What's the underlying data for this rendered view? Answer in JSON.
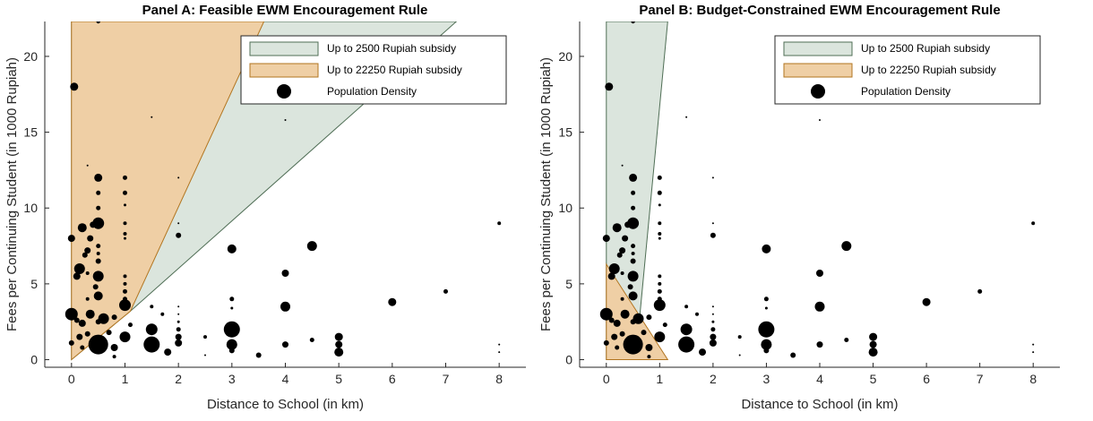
{
  "colors": {
    "green_fill": "#dbe5dd",
    "green_edge": "#4f6e55",
    "orange_fill": "#efcfa5",
    "orange_edge": "#b27520",
    "dots": "#000000",
    "axis": "#262626"
  },
  "chart_data": [
    {
      "type": "scatter",
      "title": "Panel A: Feasible EWM Encouragement Rule",
      "xlabel": "Distance to School (in km)",
      "ylabel": "Fees per Continuing Student (in 1000 Rupiah)",
      "xlim": [
        -0.5,
        8.5
      ],
      "ylim": [
        -0.5,
        22.3
      ],
      "xticks": [
        "0",
        "1",
        "2",
        "3",
        "4",
        "5",
        "6",
        "7",
        "8"
      ],
      "yticks": [
        "0",
        "5",
        "10",
        "15",
        "20"
      ],
      "legend_position": "top-right",
      "legend": [
        {
          "label": "Up to 2500 Rupiah subsidy",
          "kind": "patch",
          "color": "green"
        },
        {
          "label": "Up to 22250 Rupiah subsidy",
          "kind": "patch",
          "color": "orange"
        },
        {
          "label": "Population Density",
          "kind": "marker"
        }
      ],
      "regions": [
        {
          "name": "Up to 2500 Rupiah subsidy",
          "color": "green",
          "polygon": [
            [
              0,
              0
            ],
            [
              0,
              22.3
            ],
            [
              7.2,
              22.3
            ],
            [
              1.1,
              3.2
            ]
          ]
        },
        {
          "name": "Up to 22250 Rupiah subsidy",
          "color": "orange",
          "polygon": [
            [
              0,
              0
            ],
            [
              0,
              22.3
            ],
            [
              3.6,
              22.3
            ],
            [
              1.1,
              3.2
            ]
          ]
        }
      ]
    },
    {
      "type": "scatter",
      "title": "Panel B: Budget-Constrained EWM Encouragement Rule",
      "xlabel": "Distance to School (in km)",
      "ylabel": "Fees per Continuing Student (in 1000 Rupiah)",
      "xlim": [
        -0.5,
        8.5
      ],
      "ylim": [
        -0.5,
        22.3
      ],
      "xticks": [
        "0",
        "1",
        "2",
        "3",
        "4",
        "5",
        "6",
        "7",
        "8"
      ],
      "yticks": [
        "0",
        "5",
        "10",
        "15",
        "20"
      ],
      "legend_position": "top-right",
      "legend": [
        {
          "label": "Up to 2500 Rupiah subsidy",
          "kind": "patch",
          "color": "green"
        },
        {
          "label": "Up to 22250 Rupiah subsidy",
          "kind": "patch",
          "color": "orange"
        },
        {
          "label": "Population Density",
          "kind": "marker"
        }
      ],
      "regions": [
        {
          "name": "Up to 2500 Rupiah subsidy",
          "color": "green",
          "polygon": [
            [
              0,
              0
            ],
            [
              0,
              22.3
            ],
            [
              1.15,
              22.3
            ],
            [
              0.55,
              0
            ]
          ]
        },
        {
          "name": "Up to 22250 Rupiah subsidy",
          "color": "orange",
          "polygon": [
            [
              0,
              0
            ],
            [
              0,
              6.3
            ],
            [
              1.15,
              0
            ]
          ]
        }
      ]
    }
  ],
  "points": [
    {
      "x": 0.5,
      "y": 22.3,
      "r": 2.2
    },
    {
      "x": 0.05,
      "y": 18.0,
      "r": 4.5
    },
    {
      "x": 1.5,
      "y": 16.0,
      "r": 1
    },
    {
      "x": 4.0,
      "y": 15.8,
      "r": 1
    },
    {
      "x": 0.5,
      "y": 12.0,
      "r": 4.5
    },
    {
      "x": 1.0,
      "y": 12.0,
      "r": 2.5
    },
    {
      "x": 2.0,
      "y": 12.0,
      "r": 1
    },
    {
      "x": 0.3,
      "y": 12.8,
      "r": 1
    },
    {
      "x": 0.5,
      "y": 11.0,
      "r": 2.5
    },
    {
      "x": 1.0,
      "y": 11.0,
      "r": 2.5
    },
    {
      "x": 1.0,
      "y": 10.2,
      "r": 1.5
    },
    {
      "x": 0.5,
      "y": 10.0,
      "r": 2.5
    },
    {
      "x": 0.5,
      "y": 9.0,
      "r": 6.5
    },
    {
      "x": 1.0,
      "y": 9.0,
      "r": 2
    },
    {
      "x": 0.2,
      "y": 8.7,
      "r": 5
    },
    {
      "x": 0.4,
      "y": 8.9,
      "r": 3.5
    },
    {
      "x": 2.0,
      "y": 9.0,
      "r": 1
    },
    {
      "x": 8.0,
      "y": 9.0,
      "r": 2
    },
    {
      "x": 0.0,
      "y": 8.0,
      "r": 4
    },
    {
      "x": 0.35,
      "y": 8.0,
      "r": 3.5
    },
    {
      "x": 1.0,
      "y": 8.3,
      "r": 2
    },
    {
      "x": 1.0,
      "y": 8.0,
      "r": 1.5
    },
    {
      "x": 2.0,
      "y": 8.2,
      "r": 3
    },
    {
      "x": 0.3,
      "y": 7.2,
      "r": 3.5
    },
    {
      "x": 0.5,
      "y": 7.5,
      "r": 2.5
    },
    {
      "x": 0.25,
      "y": 6.9,
      "r": 3
    },
    {
      "x": 0.5,
      "y": 7.0,
      "r": 2
    },
    {
      "x": 3.0,
      "y": 7.3,
      "r": 5
    },
    {
      "x": 4.5,
      "y": 7.5,
      "r": 5.5
    },
    {
      "x": 0.15,
      "y": 6.0,
      "r": 6
    },
    {
      "x": 0.5,
      "y": 6.5,
      "r": 3
    },
    {
      "x": 0.1,
      "y": 5.5,
      "r": 4
    },
    {
      "x": 0.3,
      "y": 5.7,
      "r": 2
    },
    {
      "x": 0.5,
      "y": 5.5,
      "r": 6
    },
    {
      "x": 1.0,
      "y": 5.5,
      "r": 2
    },
    {
      "x": 4.0,
      "y": 5.7,
      "r": 4
    },
    {
      "x": 0.45,
      "y": 4.8,
      "r": 3
    },
    {
      "x": 1.0,
      "y": 5.0,
      "r": 2
    },
    {
      "x": 0.5,
      "y": 4.2,
      "r": 5
    },
    {
      "x": 1.0,
      "y": 4.5,
      "r": 2.5
    },
    {
      "x": 0.3,
      "y": 4.0,
      "r": 2
    },
    {
      "x": 1.0,
      "y": 4.0,
      "r": 2.5
    },
    {
      "x": 3.0,
      "y": 4.0,
      "r": 2.5
    },
    {
      "x": 7.0,
      "y": 4.5,
      "r": 2.5
    },
    {
      "x": 1.0,
      "y": 3.6,
      "r": 6.5
    },
    {
      "x": 6.0,
      "y": 3.8,
      "r": 4.5
    },
    {
      "x": 4.0,
      "y": 3.5,
      "r": 5.5
    },
    {
      "x": 1.5,
      "y": 3.5,
      "r": 2
    },
    {
      "x": 2.0,
      "y": 3.5,
      "r": 1
    },
    {
      "x": 3.0,
      "y": 3.4,
      "r": 1.5
    },
    {
      "x": 0.0,
      "y": 3.0,
      "r": 7
    },
    {
      "x": 0.35,
      "y": 3.0,
      "r": 5
    },
    {
      "x": 0.6,
      "y": 2.7,
      "r": 6
    },
    {
      "x": 0.8,
      "y": 2.8,
      "r": 3
    },
    {
      "x": 1.7,
      "y": 3.0,
      "r": 2
    },
    {
      "x": 2.0,
      "y": 3.0,
      "r": 1
    },
    {
      "x": 0.2,
      "y": 2.4,
      "r": 4
    },
    {
      "x": 0.1,
      "y": 2.6,
      "r": 3
    },
    {
      "x": 0.5,
      "y": 2.5,
      "r": 3
    },
    {
      "x": 1.1,
      "y": 2.3,
      "r": 2.5
    },
    {
      "x": 2.0,
      "y": 2.5,
      "r": 1.5
    },
    {
      "x": 2.0,
      "y": 2.0,
      "r": 2.5
    },
    {
      "x": 1.5,
      "y": 2.0,
      "r": 6.5
    },
    {
      "x": 3.0,
      "y": 2.0,
      "r": 9
    },
    {
      "x": 0.3,
      "y": 1.7,
      "r": 3
    },
    {
      "x": 0.7,
      "y": 1.8,
      "r": 3
    },
    {
      "x": 0.15,
      "y": 1.5,
      "r": 3.5
    },
    {
      "x": 1.0,
      "y": 1.5,
      "r": 6
    },
    {
      "x": 2.0,
      "y": 1.5,
      "r": 3.5
    },
    {
      "x": 2.5,
      "y": 1.5,
      "r": 2
    },
    {
      "x": 5.0,
      "y": 1.5,
      "r": 4.5
    },
    {
      "x": 4.5,
      "y": 1.3,
      "r": 2.5
    },
    {
      "x": 2.0,
      "y": 1.1,
      "r": 4
    },
    {
      "x": 3.0,
      "y": 1.0,
      "r": 6
    },
    {
      "x": 4.0,
      "y": 1.0,
      "r": 3.5
    },
    {
      "x": 5.0,
      "y": 1.0,
      "r": 4
    },
    {
      "x": 8.0,
      "y": 1.0,
      "r": 1
    },
    {
      "x": 0.5,
      "y": 1.0,
      "r": 11
    },
    {
      "x": 0.0,
      "y": 1.1,
      "r": 3
    },
    {
      "x": 0.2,
      "y": 0.8,
      "r": 2.5
    },
    {
      "x": 0.8,
      "y": 0.8,
      "r": 4
    },
    {
      "x": 1.5,
      "y": 1.0,
      "r": 9
    },
    {
      "x": 1.8,
      "y": 0.5,
      "r": 4
    },
    {
      "x": 3.0,
      "y": 0.6,
      "r": 3
    },
    {
      "x": 5.0,
      "y": 0.5,
      "r": 5
    },
    {
      "x": 8.0,
      "y": 0.5,
      "r": 1
    },
    {
      "x": 3.5,
      "y": 0.3,
      "r": 3
    },
    {
      "x": 2.5,
      "y": 0.3,
      "r": 1
    },
    {
      "x": 0.8,
      "y": 0.2,
      "r": 2
    }
  ]
}
